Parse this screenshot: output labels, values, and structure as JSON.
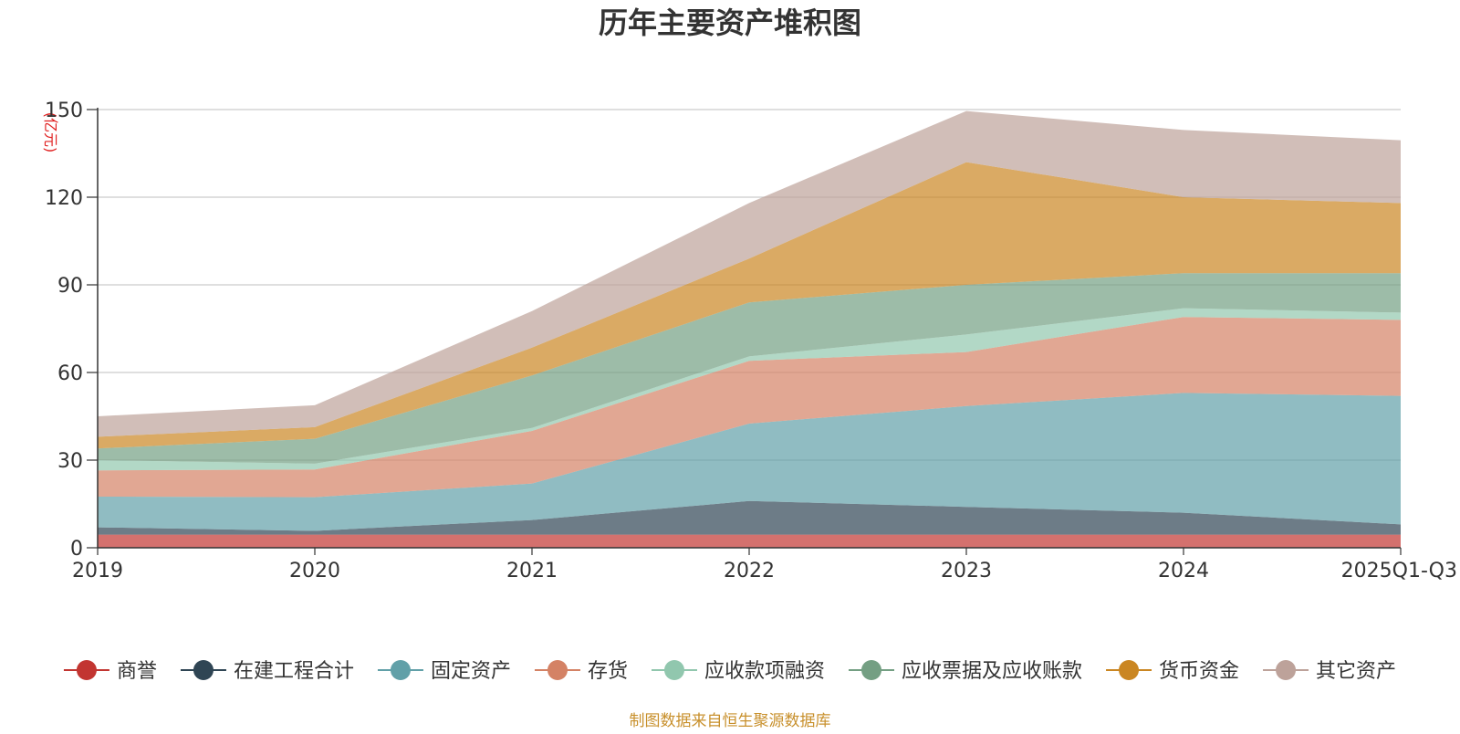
{
  "chart_data": {
    "type": "area",
    "stacked": true,
    "title": "历年主要资产堆积图",
    "ylabel": "(亿元)",
    "xlabel": "",
    "ylim": [
      0,
      150
    ],
    "yticks": [
      0,
      30,
      60,
      90,
      120,
      150
    ],
    "grid": true,
    "legend_position": "bottom",
    "categories": [
      "2019",
      "2020",
      "2021",
      "2022",
      "2023",
      "2024",
      "2025Q1-Q3"
    ],
    "series": [
      {
        "name": "商誉",
        "color": "#c23531",
        "values": [
          4.5,
          4.5,
          4.5,
          4.5,
          4.5,
          4.5,
          4.5
        ]
      },
      {
        "name": "在建工程合计",
        "color": "#2f4554",
        "values": [
          2.5,
          1.3,
          5.0,
          11.5,
          9.5,
          7.5,
          3.5
        ]
      },
      {
        "name": "固定资产",
        "color": "#61a0a8",
        "values": [
          10.5,
          11.5,
          12.5,
          26.5,
          34.5,
          41.0,
          44.0
        ]
      },
      {
        "name": "存货",
        "color": "#d48265",
        "values": [
          9.0,
          9.5,
          18.0,
          21.5,
          18.5,
          26.0,
          26.0
        ]
      },
      {
        "name": "应收款项融资",
        "color": "#91c7ae",
        "values": [
          3.5,
          2.0,
          1.0,
          1.5,
          6.0,
          3.0,
          2.5
        ]
      },
      {
        "name": "应收票据及应收账款",
        "color": "#749f83",
        "values": [
          4.0,
          8.5,
          18.0,
          18.5,
          17.0,
          12.0,
          13.5
        ]
      },
      {
        "name": "货币资金",
        "color": "#ca8622",
        "values": [
          4.0,
          4.0,
          9.5,
          15.0,
          42.0,
          26.0,
          24.0
        ]
      },
      {
        "name": "其它资产",
        "color": "#bda29a",
        "values": [
          7.0,
          7.5,
          12.5,
          19.0,
          17.5,
          23.0,
          21.5
        ]
      }
    ]
  },
  "footer": {
    "source": "制图数据来自恒生聚源数据库"
  }
}
